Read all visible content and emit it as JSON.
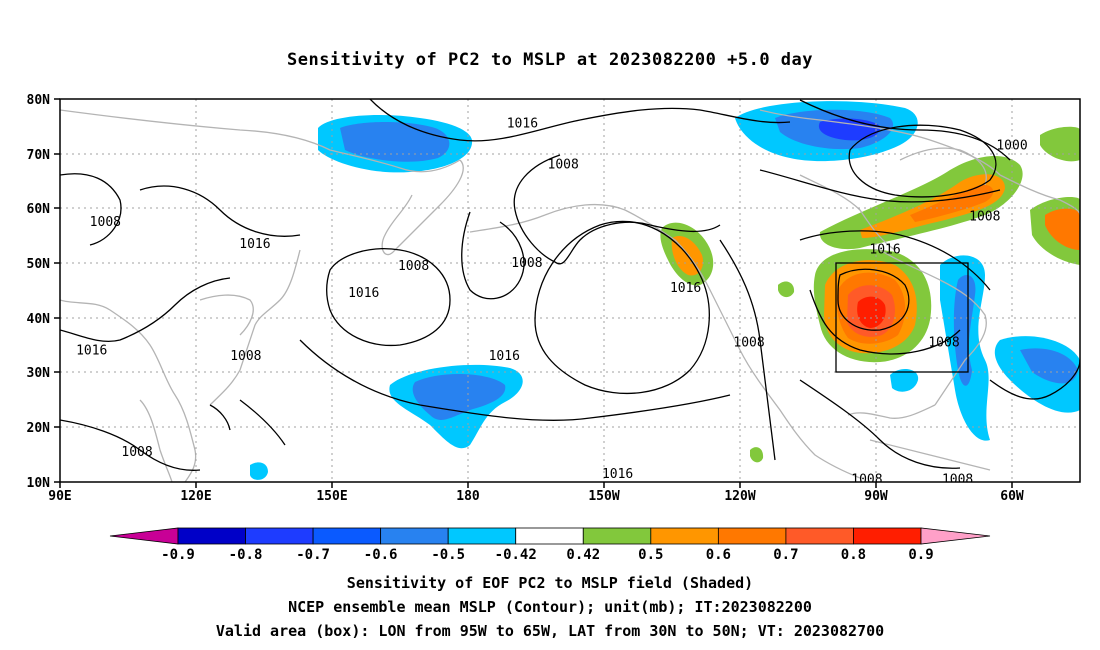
{
  "title": "Sensitivity of PC2 to MSLP at 2023082200 +5.0 day",
  "axes": {
    "lon_labels": [
      "90E",
      "120E",
      "150E",
      "180",
      "150W",
      "120W",
      "90W",
      "60W"
    ],
    "lat_labels": [
      "80N",
      "70N",
      "60N",
      "50N",
      "40N",
      "30N",
      "20N",
      "10N"
    ],
    "lon_range": [
      90,
      315
    ],
    "lat_range": [
      10,
      80
    ]
  },
  "contour_labels": [
    {
      "text": "1016",
      "lon": 192,
      "lat": 75.5
    },
    {
      "text": "1008",
      "lon": 201,
      "lat": 68.0
    },
    {
      "text": "1000",
      "lon": 300,
      "lat": 71.5
    },
    {
      "text": "1008",
      "lon": 100,
      "lat": 57.5
    },
    {
      "text": "1016",
      "lon": 133,
      "lat": 53.5
    },
    {
      "text": "1008",
      "lon": 168,
      "lat": 49.5
    },
    {
      "text": "1008",
      "lon": 193,
      "lat": 50.0
    },
    {
      "text": "1016",
      "lon": 157,
      "lat": 44.5
    },
    {
      "text": "1016",
      "lon": 228,
      "lat": 45.5
    },
    {
      "text": "1008",
      "lon": 294,
      "lat": 58.5
    },
    {
      "text": "1016",
      "lon": 272,
      "lat": 52.5
    },
    {
      "text": "1016",
      "lon": 97,
      "lat": 34.0
    },
    {
      "text": "1008",
      "lon": 131,
      "lat": 33.0
    },
    {
      "text": "1016",
      "lon": 188,
      "lat": 33.0
    },
    {
      "text": "1008",
      "lon": 242,
      "lat": 35.5
    },
    {
      "text": "1008",
      "lon": 285,
      "lat": 35.5
    },
    {
      "text": "1016",
      "lon": 213,
      "lat": 11.5
    },
    {
      "text": "1008",
      "lon": 107,
      "lat": 15.5
    },
    {
      "text": "1008",
      "lon": 268,
      "lat": 10.5
    },
    {
      "text": "1008",
      "lon": 288,
      "lat": 10.5
    }
  ],
  "valid_box": {
    "lon_min": 265,
    "lon_max": 295,
    "lat_min": 30,
    "lat_max": 50
  },
  "colorbar": {
    "labels": [
      "-0.9",
      "-0.8",
      "-0.7",
      "-0.6",
      "-0.5",
      "-0.42",
      "0.42",
      "0.5",
      "0.6",
      "0.7",
      "0.8",
      "0.9"
    ],
    "colors": [
      "#0000c8",
      "#1e3cff",
      "#0a5aff",
      "#2882f0",
      "#00c8ff",
      "#ffffff",
      "#82c83c",
      "#ff9600",
      "#ff7800",
      "#ff5a28",
      "#ff1e00"
    ],
    "low_color": "#c80096",
    "high_color": "#ffa0c8"
  },
  "captions": [
    "Sensitivity of EOF PC2 to MSLP field (Shaded)",
    "NCEP ensemble mean MSLP (Contour); unit(mb); IT:2023082200",
    "Valid area (box): LON from 95W to 65W, LAT from 30N to 50N; VT: 2023082700"
  ]
}
